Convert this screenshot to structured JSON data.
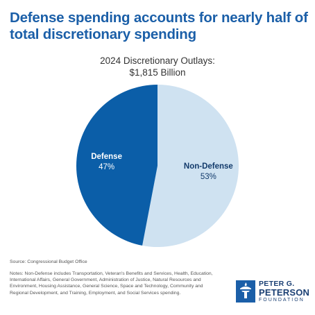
{
  "title": "Defense spending accounts for nearly half of total discretionary spending",
  "subtitle_line1": "2024 Discretionary Outlays:",
  "subtitle_line2": "$1,815 Billion",
  "chart_data": {
    "type": "pie",
    "title": "2024 Discretionary Outlays: $1,815 Billion",
    "slices": [
      {
        "name": "Non-Defense",
        "value": 53,
        "label": "53%",
        "color": "#cfe2f1",
        "text_color": "#123a6b"
      },
      {
        "name": "Defense",
        "value": 47,
        "label": "47%",
        "color": "#0b5ea8",
        "text_color": "#ffffff"
      }
    ],
    "start_angle_deg": 0,
    "direction": "clockwise",
    "legend": "none"
  },
  "footer": {
    "source": "Source: Congressional Budget Office",
    "notes": "Notes: Non-Defense includes Transportation, Veteran's Benefits and Services, Health, Education, International Affairs, General Government, Administration of Justice, Natural Resources and Environment, Housing Assistance, General Science, Space and Technology, Community and Regional Development, and Training, Employment, and Social Services spending."
  },
  "logo": {
    "line1": "PETER G.",
    "line2": "PETERSON",
    "line3": "FOUNDATION"
  }
}
